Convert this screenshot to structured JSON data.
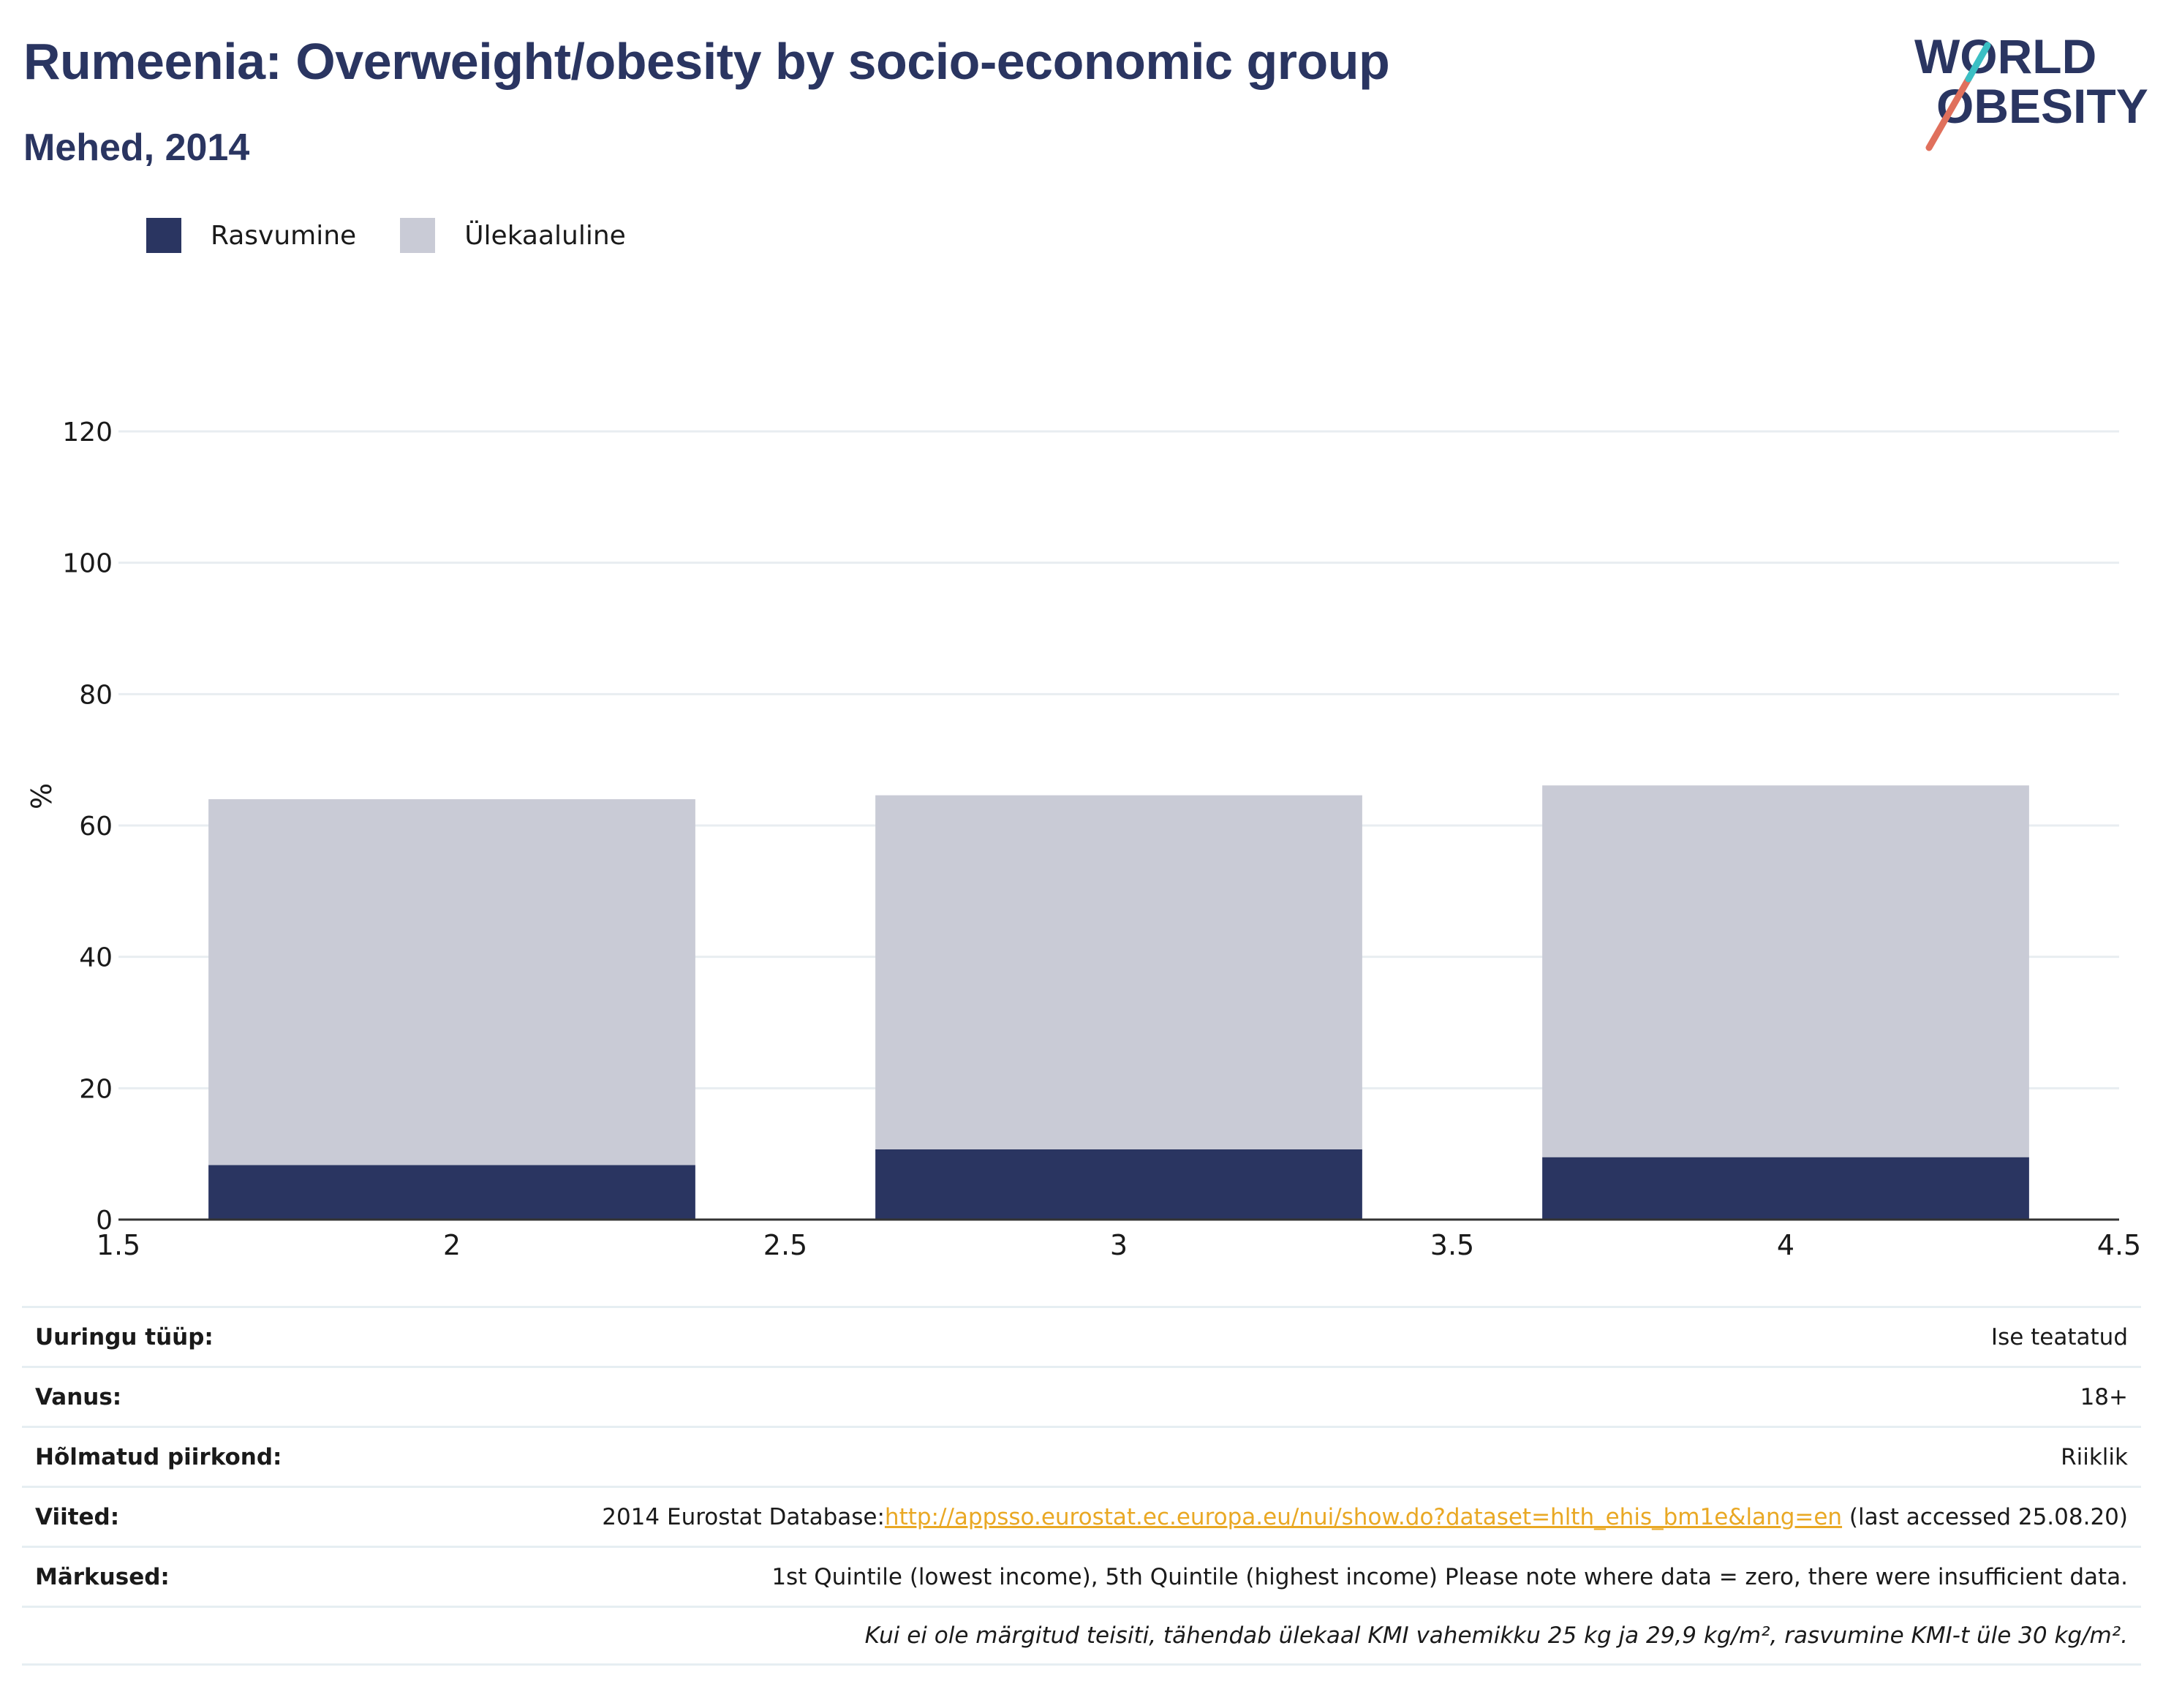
{
  "header": {
    "title": "Rumeenia: Overweight/obesity by socio-economic group",
    "subtitle": "Mehed, 2014"
  },
  "logo": {
    "line1": "WORLD",
    "line2": "OBESITY"
  },
  "colors": {
    "obesity": "#2a3561",
    "overweight": "#c9cbd6",
    "accent_teal": "#3bbfc4",
    "accent_red": "#e0705c",
    "link": "#e9a824"
  },
  "legend": [
    {
      "label": "Rasvumine",
      "color": "#2a3561"
    },
    {
      "label": "Ülekaaluline",
      "color": "#c9cbd6"
    }
  ],
  "chart_data": {
    "type": "bar",
    "stacked": true,
    "x": [
      2,
      3,
      4
    ],
    "x_ticks": [
      "1.5",
      "2",
      "2.5",
      "3",
      "3.5",
      "4",
      "4.5"
    ],
    "xlim": [
      1.5,
      4.5
    ],
    "y_ticks": [
      "0",
      "20",
      "40",
      "60",
      "80",
      "100",
      "120"
    ],
    "ylim": [
      0,
      120
    ],
    "ylabel": "%",
    "grid": true,
    "legend_position": "top-left",
    "series": [
      {
        "name": "Rasvumine",
        "values": [
          8.3,
          10.7,
          9.5
        ]
      },
      {
        "name": "Ülekaaluline",
        "values": [
          55.7,
          53.9,
          56.6
        ]
      }
    ]
  },
  "info": {
    "survey_type": {
      "label": "Uuringu tüüp:",
      "value": "Ise teatatud"
    },
    "age": {
      "label": "Vanus:",
      "value": "18+"
    },
    "region": {
      "label": "Hõlmatud piirkond:",
      "value": "Riiklik"
    },
    "references": {
      "label": "Viited:",
      "prefix": "2014 Eurostat Database:",
      "link": "http://appsso.eurostat.ec.europa.eu/nui/show.do?dataset=hlth_ehis_bm1e&lang=en",
      "suffix": " (last accessed 25.08.20)"
    },
    "notes": {
      "label": "Märkused:",
      "value": "1st Quintile (lowest income), 5th Quintile (highest income) Please note where data = zero, there were insufficient data."
    },
    "definition": "Kui ei ole märgitud teisiti, tähendab ülekaal KMI vahemikku 25 kg ja 29,9 kg/m², rasvumine KMI-t üle 30 kg/m²."
  }
}
